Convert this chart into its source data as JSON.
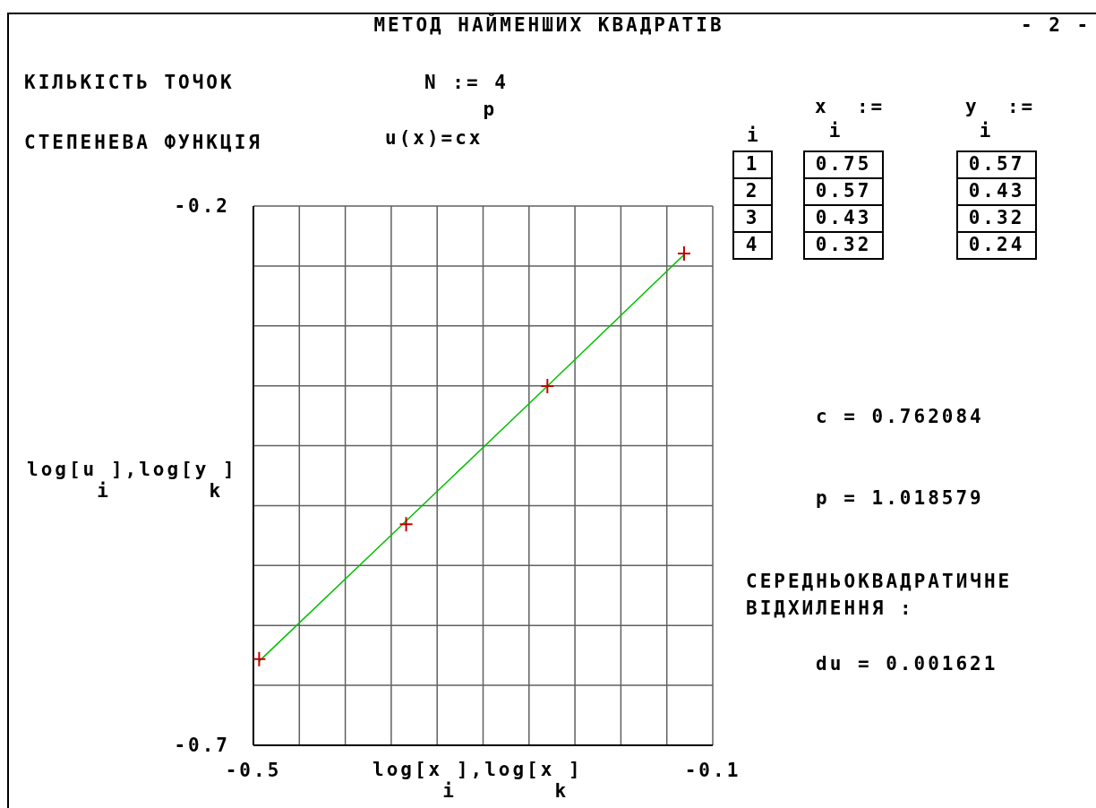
{
  "chart_data": {
    "type": "scatter",
    "title": "МЕТОД НАЙМЕНШИХ КВАДРАТІВ",
    "xlabel": "log[x$_{i}$],log[x$_{k}$]",
    "ylabel": "log[u$_{i}$],log[y$_{k}$]",
    "series": [
      {
        "type": "line",
        "x": [
          -0.125,
          -0.244,
          -0.367,
          -0.495
        ],
        "values": [
          -0.245,
          -0.367,
          -0.492,
          -0.622
        ],
        "color": "#00c000"
      },
      {
        "type": "scatter",
        "x": [
          -0.125,
          -0.244,
          -0.367,
          -0.495
        ],
        "values": [
          -0.244,
          -0.367,
          -0.495,
          -0.62
        ],
        "color": "#c00000",
        "marker": "cross"
      }
    ],
    "xlim": [
      -0.5,
      -0.1
    ],
    "ylim": [
      -0.7,
      -0.2
    ],
    "xticks": [
      -0.5,
      {
        "value": -0.46,
        "label": null
      },
      {
        "value": -0.42,
        "label": null
      },
      {
        "value": -0.38,
        "label": null
      },
      {
        "value": -0.34,
        "label": null
      },
      {
        "value": -0.3,
        "label": null
      },
      {
        "value": -0.26,
        "label": null
      },
      {
        "value": -0.22,
        "label": null
      },
      {
        "value": -0.18,
        "label": null
      },
      {
        "value": -0.14,
        "label": null
      },
      -0.1
    ],
    "yticks": [
      -0.7,
      {
        "value": -0.6444,
        "label": null
      },
      {
        "value": -0.5889,
        "label": null
      },
      {
        "value": -0.5333,
        "label": null
      },
      {
        "value": -0.4778,
        "label": null
      },
      {
        "value": -0.4222,
        "label": null
      },
      {
        "value": -0.3667,
        "label": null
      },
      {
        "value": -0.3111,
        "label": null
      },
      {
        "value": -0.2556,
        "label": null
      },
      -0.2
    ],
    "grid": true,
    "annotations": [
      "- 2 -",
      "КІЛЬКІСТЬ ТОЧОК",
      "N := 4",
      "СТЕПЕНЕВА ФУНКЦІЯ",
      "u(x)=cx$^{p}$",
      "i",
      "x$_{i}$ :=",
      "y$_{i}$ :=",
      "1",
      "0.75",
      "0.57",
      "2",
      "0.57",
      "0.43",
      "3",
      "0.43",
      "0.32",
      "4",
      "0.32",
      "0.24",
      "c = 0.762084",
      "p = 1.018579",
      "СЕРЕДНЬОКВАДРАТИЧНЕ ВІДХИЛЕННЯ :",
      "du = 0.001621"
    ]
  }
}
